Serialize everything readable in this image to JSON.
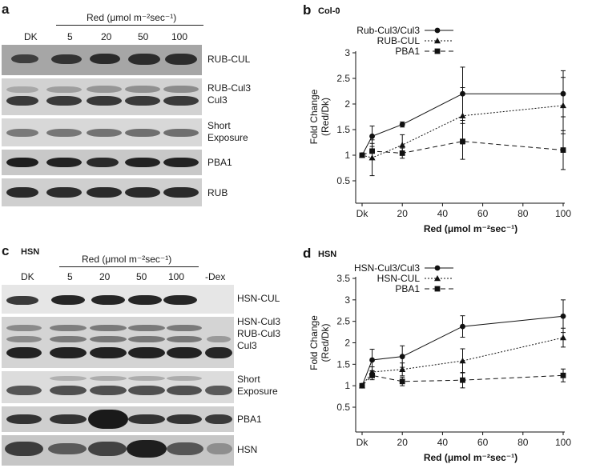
{
  "panel_a": {
    "letter": "a",
    "condition_header": "Red (μmol m⁻²sec⁻¹)",
    "lanes": [
      "DK",
      "5",
      "20",
      "50",
      "100"
    ],
    "blots": [
      {
        "label": "RUB-CUL"
      },
      {
        "label": "RUB-Cul3\nCul3"
      },
      {
        "label": "Short\nExposure"
      },
      {
        "label": "PBA1"
      },
      {
        "label": "RUB"
      }
    ]
  },
  "panel_c": {
    "letter": "c",
    "title": "HSN",
    "condition_header": "Red (μmol m⁻²sec⁻¹)",
    "lanes": [
      "DK",
      "5",
      "20",
      "50",
      "100",
      "-Dex"
    ],
    "blots": [
      {
        "label": "HSN-CUL"
      },
      {
        "label": "HSN-Cul3\nRUB-Cul3\nCul3"
      },
      {
        "label": "Short\nExposure"
      },
      {
        "label": "PBA1"
      },
      {
        "label": "HSN"
      }
    ]
  },
  "chart_data": [
    {
      "panel": "b",
      "type": "line",
      "title": "Col-0",
      "xlabel": "Red (μmol m⁻²sec⁻¹)",
      "ylabel": "Fold Change\n(Red/Dk)",
      "x": [
        0,
        5,
        20,
        50,
        100
      ],
      "xticks": [
        "Dk",
        "20",
        "40",
        "60",
        "80",
        "100"
      ],
      "yticks": [
        "0.5",
        "1",
        "1.5",
        "2",
        "2.5",
        "3"
      ],
      "xlim": [
        0,
        100
      ],
      "ylim": [
        0.5,
        3
      ],
      "legend_position": "top-center",
      "series": [
        {
          "name": "Rub-Cul3/Cul3",
          "marker": "circle",
          "line": "solid",
          "values": [
            1.0,
            1.37,
            1.6,
            2.2,
            2.2
          ],
          "err": [
            0,
            0.2,
            0.05,
            0.52,
            0.45
          ]
        },
        {
          "name": "RUB-CUL",
          "marker": "triangle",
          "line": "dotted",
          "values": [
            1.0,
            0.95,
            1.2,
            1.77,
            1.97
          ],
          "err": [
            0,
            0.35,
            0.2,
            0.55,
            0.55
          ]
        },
        {
          "name": "PBA1",
          "marker": "square",
          "line": "dashed",
          "values": [
            1.0,
            1.08,
            1.04,
            1.27,
            1.1
          ],
          "err": [
            0,
            0.15,
            0.1,
            0.35,
            0.38
          ]
        }
      ]
    },
    {
      "panel": "d",
      "type": "line",
      "title": "HSN",
      "xlabel": "Red (μmol m⁻²sec⁻¹)",
      "ylabel": "Fold Change\n(Red/Dk)",
      "x": [
        0,
        5,
        20,
        50,
        100
      ],
      "xticks": [
        "Dk",
        "20",
        "40",
        "60",
        "80",
        "100"
      ],
      "yticks": [
        "0.5",
        "1",
        "1.5",
        "2",
        "2.5",
        "3",
        "3.5"
      ],
      "xlim": [
        0,
        100
      ],
      "ylim": [
        0.5,
        3.5
      ],
      "legend_position": "top-center",
      "series": [
        {
          "name": "HSN-Cul3/Cul3",
          "marker": "circle",
          "line": "solid",
          "values": [
            1.0,
            1.6,
            1.68,
            2.38,
            2.62
          ],
          "err": [
            0,
            0.25,
            0.25,
            0.25,
            0.38
          ]
        },
        {
          "name": "HSN-CUL",
          "marker": "triangle",
          "line": "dotted",
          "values": [
            1.0,
            1.32,
            1.38,
            1.58,
            2.12
          ],
          "err": [
            0,
            0.12,
            0.15,
            0.28,
            0.22
          ]
        },
        {
          "name": "PBA1",
          "marker": "square",
          "line": "dashed",
          "values": [
            1.0,
            1.24,
            1.1,
            1.13,
            1.24
          ],
          "err": [
            0,
            0.1,
            0.1,
            0.18,
            0.15
          ]
        }
      ]
    }
  ]
}
